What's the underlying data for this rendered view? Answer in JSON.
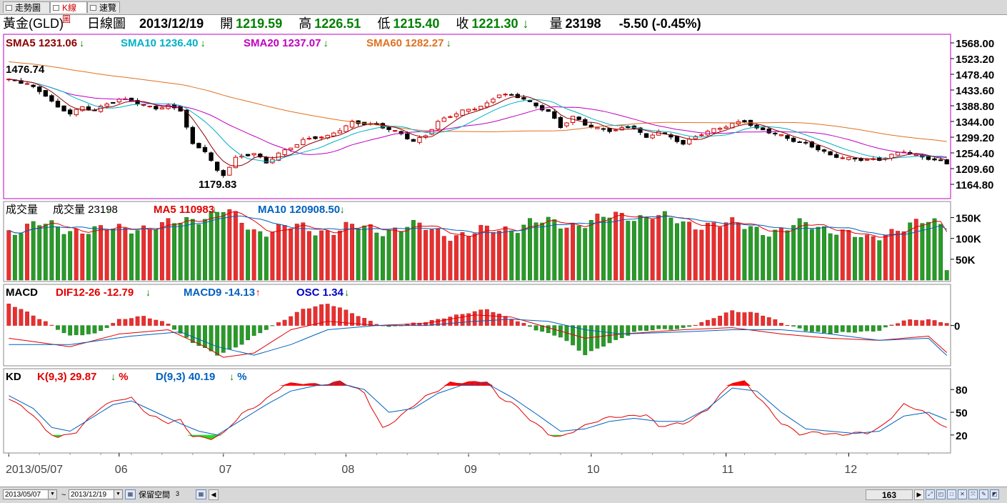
{
  "tabs": [
    {
      "label": "走勢圖"
    },
    {
      "label": "K線圖"
    },
    {
      "label": "速覽"
    }
  ],
  "quote": {
    "name": "黃金(GLD)",
    "type": "日線圖",
    "date": "2013/12/19",
    "open_label": "開",
    "open": "1219.59",
    "high_label": "高",
    "high": "1226.51",
    "low_label": "低",
    "low": "1215.40",
    "close_label": "收",
    "close": "1221.30",
    "close_arrow": "↓",
    "vol_label": "量",
    "vol": "23198",
    "change": "-5.50 (-0.45%)"
  },
  "colors": {
    "sma5": "#8b0000",
    "sma10": "#00b0c8",
    "sma20": "#c000c0",
    "sma60": "#e07020",
    "up": "#e83030",
    "down": "#2a9a2a",
    "frame": "#c000c0"
  },
  "price_panel": {
    "legend": [
      {
        "text": "SMA5 1231.06",
        "arrow": "↓",
        "color": "#8b0000"
      },
      {
        "text": "SMA10 1236.40",
        "arrow": "↓",
        "color": "#00b0c8"
      },
      {
        "text": "SMA20 1237.07",
        "arrow": "↓",
        "color": "#c000c0"
      },
      {
        "text": "SMA60 1282.27",
        "arrow": "↓",
        "color": "#e07020"
      }
    ],
    "max_label": "1476.74",
    "min_label": "1179.83"
  },
  "volume_panel": {
    "title": "成交量",
    "legend": [
      {
        "text": "成交量 23198",
        "arrow": "↓",
        "color": "#000000"
      },
      {
        "text": "MA5 110983",
        "arrow": "↓",
        "color": "#e00000"
      },
      {
        "text": "MA10 120908.50",
        "arrow": "↓",
        "color": "#0060c0"
      }
    ]
  },
  "macd_panel": {
    "title": "MACD",
    "legend": [
      {
        "text": "DIF12-26 -12.79",
        "arrow": "↓",
        "color": "#e00000"
      },
      {
        "text": "MACD9 -14.13",
        "arrow": "↑",
        "color": "#0060c0"
      },
      {
        "text": "OSC 1.34",
        "arrow": "↓",
        "color": "#0000c0"
      }
    ]
  },
  "kd_panel": {
    "title": "KD",
    "legend": [
      {
        "text": "K(9,3) 29.87",
        "arrow": "↓",
        "suffix": "%",
        "color": "#e00000"
      },
      {
        "text": "D(9,3) 40.19",
        "arrow": "↓",
        "suffix": "%",
        "color": "#0060c0"
      }
    ]
  },
  "bottom": {
    "from": "2013/05/07",
    "tilde": "~",
    "to": "2013/12/19",
    "reserve": "保留空間",
    "reserve_num": "3",
    "count": "163"
  },
  "chart_data": {
    "type": "candlestick",
    "x_labels": [
      "2013/05/07",
      "06",
      "07",
      "08",
      "09",
      "10",
      "11",
      "12"
    ],
    "x_label_index": [
      0,
      18,
      35,
      55,
      75,
      95,
      117,
      137
    ],
    "n_bars": 154,
    "price_axis": {
      "min": 1164.8,
      "max": 1568.0,
      "ticks": [
        "1568.00",
        "1523.20",
        "1478.40",
        "1433.60",
        "1388.80",
        "1344.00",
        "1299.20",
        "1254.40",
        "1209.60",
        "1164.80"
      ]
    },
    "price_anchor_points": [
      [
        0,
        1460
      ],
      [
        3,
        1455
      ],
      [
        6,
        1420
      ],
      [
        8,
        1380
      ],
      [
        10,
        1365
      ],
      [
        12,
        1385
      ],
      [
        14,
        1380
      ],
      [
        16,
        1395
      ],
      [
        18,
        1405
      ],
      [
        20,
        1400
      ],
      [
        22,
        1390
      ],
      [
        24,
        1385
      ],
      [
        26,
        1390
      ],
      [
        28,
        1375
      ],
      [
        30,
        1275
      ],
      [
        32,
        1260
      ],
      [
        34,
        1205
      ],
      [
        35,
        1195
      ],
      [
        37,
        1240
      ],
      [
        40,
        1250
      ],
      [
        42,
        1225
      ],
      [
        44,
        1255
      ],
      [
        48,
        1290
      ],
      [
        52,
        1300
      ],
      [
        56,
        1345
      ],
      [
        60,
        1330
      ],
      [
        64,
        1310
      ],
      [
        66,
        1290
      ],
      [
        68,
        1305
      ],
      [
        70,
        1340
      ],
      [
        74,
        1375
      ],
      [
        78,
        1395
      ],
      [
        80,
        1420
      ],
      [
        84,
        1410
      ],
      [
        86,
        1390
      ],
      [
        88,
        1375
      ],
      [
        90,
        1325
      ],
      [
        92,
        1355
      ],
      [
        94,
        1335
      ],
      [
        98,
        1320
      ],
      [
        102,
        1325
      ],
      [
        104,
        1295
      ],
      [
        106,
        1320
      ],
      [
        110,
        1280
      ],
      [
        114,
        1315
      ],
      [
        118,
        1340
      ],
      [
        120,
        1345
      ],
      [
        122,
        1320
      ],
      [
        126,
        1305
      ],
      [
        130,
        1280
      ],
      [
        134,
        1245
      ],
      [
        138,
        1240
      ],
      [
        142,
        1232
      ],
      [
        146,
        1260
      ],
      [
        150,
        1240
      ],
      [
        153,
        1221
      ]
    ],
    "volume_axis": {
      "ticks": [
        "150K",
        "100K",
        "50K"
      ],
      "values": [
        150000,
        100000,
        50000
      ],
      "max": 175000
    },
    "volume_anchor_points": [
      [
        0,
        120000
      ],
      [
        5,
        130000
      ],
      [
        10,
        125000
      ],
      [
        15,
        115000
      ],
      [
        20,
        130000
      ],
      [
        25,
        125000
      ],
      [
        30,
        150000
      ],
      [
        35,
        165000
      ],
      [
        40,
        120000
      ],
      [
        45,
        125000
      ],
      [
        50,
        120000
      ],
      [
        55,
        125000
      ],
      [
        60,
        120000
      ],
      [
        65,
        130000
      ],
      [
        70,
        115000
      ],
      [
        75,
        110000
      ],
      [
        80,
        120000
      ],
      [
        85,
        140000
      ],
      [
        90,
        130000
      ],
      [
        95,
        145000
      ],
      [
        100,
        150000
      ],
      [
        105,
        160000
      ],
      [
        110,
        130000
      ],
      [
        115,
        140000
      ],
      [
        120,
        125000
      ],
      [
        125,
        120000
      ],
      [
        130,
        130000
      ],
      [
        135,
        125000
      ],
      [
        140,
        90000
      ],
      [
        145,
        130000
      ],
      [
        150,
        135000
      ],
      [
        152,
        130000
      ],
      [
        153,
        23198
      ]
    ],
    "macd_axis": {
      "zero_label": "0",
      "min": -17,
      "max": 12
    },
    "osc_anchor_points": [
      [
        0,
        10
      ],
      [
        6,
        2
      ],
      [
        10,
        -5
      ],
      [
        14,
        -4
      ],
      [
        18,
        3
      ],
      [
        22,
        4
      ],
      [
        26,
        1
      ],
      [
        30,
        -8
      ],
      [
        34,
        -14
      ],
      [
        37,
        -10
      ],
      [
        40,
        -5
      ],
      [
        44,
        1
      ],
      [
        48,
        8
      ],
      [
        52,
        10
      ],
      [
        56,
        6
      ],
      [
        60,
        1
      ],
      [
        62,
        -1
      ],
      [
        66,
        1
      ],
      [
        70,
        3
      ],
      [
        74,
        5
      ],
      [
        78,
        8
      ],
      [
        82,
        3
      ],
      [
        86,
        -2
      ],
      [
        90,
        -5
      ],
      [
        94,
        -14
      ],
      [
        98,
        -8
      ],
      [
        102,
        -3
      ],
      [
        106,
        -2
      ],
      [
        110,
        -1
      ],
      [
        114,
        2
      ],
      [
        118,
        7
      ],
      [
        122,
        6
      ],
      [
        126,
        1
      ],
      [
        130,
        -2
      ],
      [
        134,
        -4
      ],
      [
        138,
        -3
      ],
      [
        142,
        -2
      ],
      [
        146,
        2
      ],
      [
        150,
        3
      ],
      [
        153,
        1.34
      ]
    ],
    "dif_anchor_points": [
      [
        0,
        -6
      ],
      [
        10,
        -10
      ],
      [
        18,
        -4
      ],
      [
        26,
        -2
      ],
      [
        32,
        -10
      ],
      [
        35,
        -15
      ],
      [
        40,
        -13
      ],
      [
        46,
        -2
      ],
      [
        52,
        2
      ],
      [
        60,
        0
      ],
      [
        68,
        1
      ],
      [
        76,
        5
      ],
      [
        82,
        4
      ],
      [
        88,
        -1
      ],
      [
        94,
        -6
      ],
      [
        100,
        -4
      ],
      [
        110,
        -2
      ],
      [
        118,
        -1
      ],
      [
        126,
        -4
      ],
      [
        134,
        -6
      ],
      [
        142,
        -7
      ],
      [
        150,
        -5
      ],
      [
        153,
        -12.79
      ]
    ],
    "macd9_anchor_points": [
      [
        0,
        -9
      ],
      [
        10,
        -9
      ],
      [
        20,
        -5
      ],
      [
        28,
        -3
      ],
      [
        34,
        -10
      ],
      [
        40,
        -14
      ],
      [
        46,
        -9
      ],
      [
        52,
        -2
      ],
      [
        60,
        0
      ],
      [
        68,
        0
      ],
      [
        76,
        2
      ],
      [
        82,
        3
      ],
      [
        88,
        2
      ],
      [
        94,
        -2
      ],
      [
        100,
        -4
      ],
      [
        110,
        -3
      ],
      [
        118,
        -2
      ],
      [
        126,
        -2
      ],
      [
        134,
        -4
      ],
      [
        142,
        -7
      ],
      [
        150,
        -6
      ],
      [
        153,
        -14.13
      ]
    ],
    "kd_axis": {
      "ticks": [
        "80",
        "50",
        "20"
      ],
      "values": [
        80,
        50,
        20
      ]
    },
    "k_anchor_points": [
      [
        0,
        70
      ],
      [
        4,
        45
      ],
      [
        6,
        25
      ],
      [
        8,
        18
      ],
      [
        11,
        25
      ],
      [
        15,
        55
      ],
      [
        18,
        68
      ],
      [
        20,
        70
      ],
      [
        23,
        45
      ],
      [
        26,
        35
      ],
      [
        28,
        40
      ],
      [
        30,
        20
      ],
      [
        33,
        15
      ],
      [
        35,
        20
      ],
      [
        38,
        48
      ],
      [
        42,
        68
      ],
      [
        45,
        85
      ],
      [
        48,
        88
      ],
      [
        52,
        88
      ],
      [
        54,
        90
      ],
      [
        58,
        75
      ],
      [
        61,
        30
      ],
      [
        64,
        45
      ],
      [
        68,
        70
      ],
      [
        72,
        90
      ],
      [
        76,
        88
      ],
      [
        78,
        90
      ],
      [
        80,
        70
      ],
      [
        82,
        65
      ],
      [
        85,
        40
      ],
      [
        88,
        20
      ],
      [
        90,
        18
      ],
      [
        93,
        30
      ],
      [
        97,
        40
      ],
      [
        100,
        45
      ],
      [
        104,
        48
      ],
      [
        106,
        30
      ],
      [
        110,
        35
      ],
      [
        114,
        55
      ],
      [
        118,
        88
      ],
      [
        120,
        90
      ],
      [
        123,
        65
      ],
      [
        126,
        35
      ],
      [
        129,
        20
      ],
      [
        132,
        25
      ],
      [
        136,
        20
      ],
      [
        140,
        22
      ],
      [
        142,
        30
      ],
      [
        146,
        60
      ],
      [
        149,
        50
      ],
      [
        153,
        29.87
      ]
    ],
    "d_anchor_points": [
      [
        0,
        72
      ],
      [
        4,
        55
      ],
      [
        7,
        30
      ],
      [
        10,
        25
      ],
      [
        13,
        40
      ],
      [
        17,
        60
      ],
      [
        20,
        65
      ],
      [
        24,
        50
      ],
      [
        28,
        35
      ],
      [
        31,
        25
      ],
      [
        34,
        20
      ],
      [
        37,
        35
      ],
      [
        42,
        60
      ],
      [
        46,
        78
      ],
      [
        50,
        85
      ],
      [
        54,
        88
      ],
      [
        58,
        80
      ],
      [
        62,
        50
      ],
      [
        66,
        55
      ],
      [
        70,
        75
      ],
      [
        74,
        86
      ],
      [
        78,
        88
      ],
      [
        82,
        70
      ],
      [
        86,
        48
      ],
      [
        90,
        25
      ],
      [
        94,
        28
      ],
      [
        98,
        38
      ],
      [
        102,
        42
      ],
      [
        106,
        38
      ],
      [
        110,
        38
      ],
      [
        114,
        55
      ],
      [
        118,
        82
      ],
      [
        122,
        78
      ],
      [
        126,
        50
      ],
      [
        130,
        28
      ],
      [
        134,
        25
      ],
      [
        138,
        22
      ],
      [
        142,
        25
      ],
      [
        146,
        45
      ],
      [
        150,
        50
      ],
      [
        153,
        40.19
      ]
    ]
  }
}
